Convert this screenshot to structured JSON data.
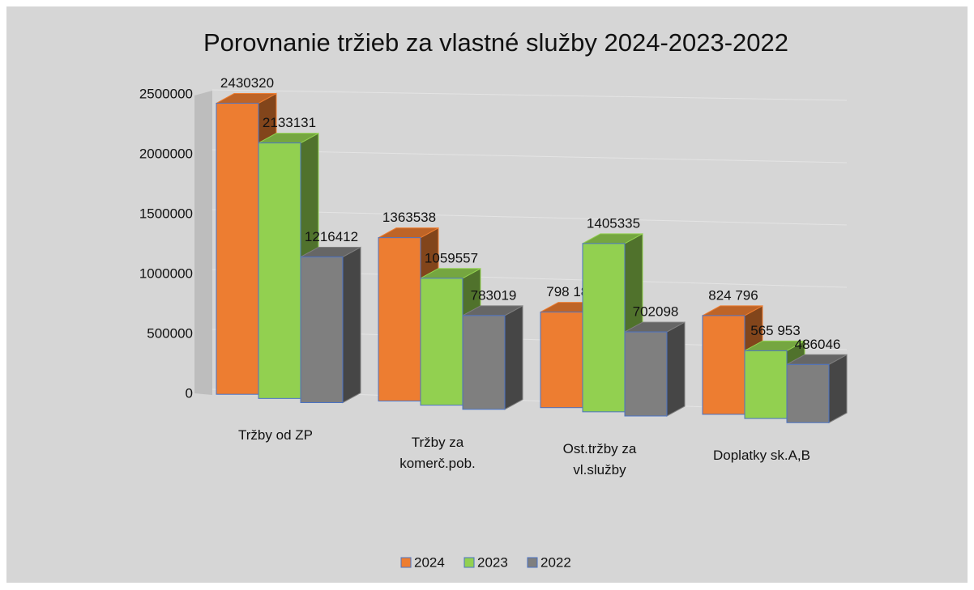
{
  "chart_data": {
    "type": "bar3d",
    "title": "Porovnanie tržieb za vlastné služby 2024-2023-2022",
    "categories": [
      "Tržby od ZP",
      "Tržby za komerč.pob.",
      "Ost.tržby za vl.služby",
      "Doplatky sk.A,B"
    ],
    "series": [
      {
        "name": "2024",
        "color": "#ed7d31",
        "values": [
          2430320,
          1363538,
          798188,
          824796
        ],
        "value_labels": [
          "2430320",
          "1363538",
          "798 188",
          "824 796"
        ]
      },
      {
        "name": "2023",
        "color": "#92d050",
        "values": [
          2133131,
          1059557,
          1405335,
          565953
        ],
        "value_labels": [
          "2133131",
          "1059557",
          "1405335",
          "565 953"
        ]
      },
      {
        "name": "2022",
        "color": "#7f7f7f",
        "values": [
          1216412,
          783019,
          702098,
          486046
        ]
      }
    ],
    "ylim": [
      0,
      2500000
    ],
    "yticks": [
      0,
      500000,
      1000000,
      1500000,
      2000000,
      2500000
    ],
    "grid": true,
    "legend": "bottom"
  }
}
